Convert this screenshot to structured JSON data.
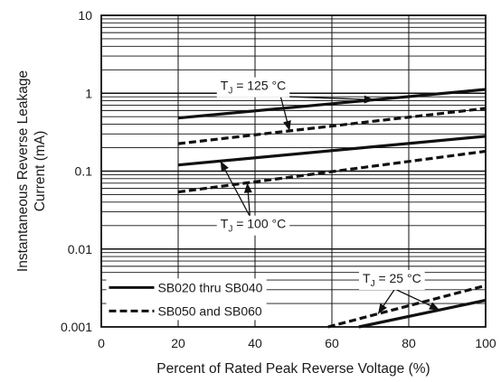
{
  "chart_data": {
    "type": "line",
    "title": "",
    "xlabel": "Percent of Rated Peak Reverse Voltage (%)",
    "ylabel_lines": [
      "Instantaneous Reverse Leakage",
      "Current (mA)"
    ],
    "xlim": [
      0,
      100
    ],
    "ylim": [
      0.001,
      10
    ],
    "yscale": "log",
    "grid": true,
    "x_ticks": [
      0,
      20,
      40,
      60,
      80,
      100
    ],
    "x_tick_labels": [
      "0",
      "20",
      "40",
      "60",
      "80",
      "100"
    ],
    "y_ticks": [
      0.001,
      0.01,
      0.1,
      1,
      10
    ],
    "y_tick_labels": [
      "0.001",
      "0.01",
      "0.1",
      "1",
      "10"
    ],
    "legend_position": "bottom-left",
    "legend": [
      {
        "label": "SB020 thru SB040",
        "style": "solid"
      },
      {
        "label": "SB050 and SB060",
        "style": "dashed"
      }
    ],
    "series": [
      {
        "group": "125",
        "style": "solid",
        "x": [
          20,
          100
        ],
        "y": [
          0.48,
          1.12
        ]
      },
      {
        "group": "125",
        "style": "dashed",
        "x": [
          20,
          100
        ],
        "y": [
          0.225,
          0.64
        ]
      },
      {
        "group": "100",
        "style": "solid",
        "x": [
          20,
          100
        ],
        "y": [
          0.12,
          0.28
        ]
      },
      {
        "group": "100",
        "style": "dashed",
        "x": [
          20,
          100
        ],
        "y": [
          0.054,
          0.18
        ]
      },
      {
        "group": "25",
        "style": "solid",
        "x": [
          67,
          100
        ],
        "y": [
          0.001,
          0.0022
        ]
      },
      {
        "group": "25",
        "style": "dashed",
        "x": [
          59,
          100
        ],
        "y": [
          0.001,
          0.0034
        ]
      }
    ],
    "annotations": [
      {
        "id": "tj125",
        "prefix": "T",
        "sub": "J",
        "suffix": " = 125 °C",
        "x": 31,
        "y": 1.1
      },
      {
        "id": "tj100",
        "prefix": "T",
        "sub": "J",
        "suffix": " = 100 °C",
        "x": 31,
        "y": 0.0185
      },
      {
        "id": "tj25",
        "prefix": "T",
        "sub": "J",
        "suffix": " = 25 °C",
        "x": 68,
        "y": 0.0037
      }
    ],
    "colors": {
      "line": "#111111",
      "grid": "#111111",
      "text": "#1a1a1a",
      "background": "#ffffff"
    }
  }
}
